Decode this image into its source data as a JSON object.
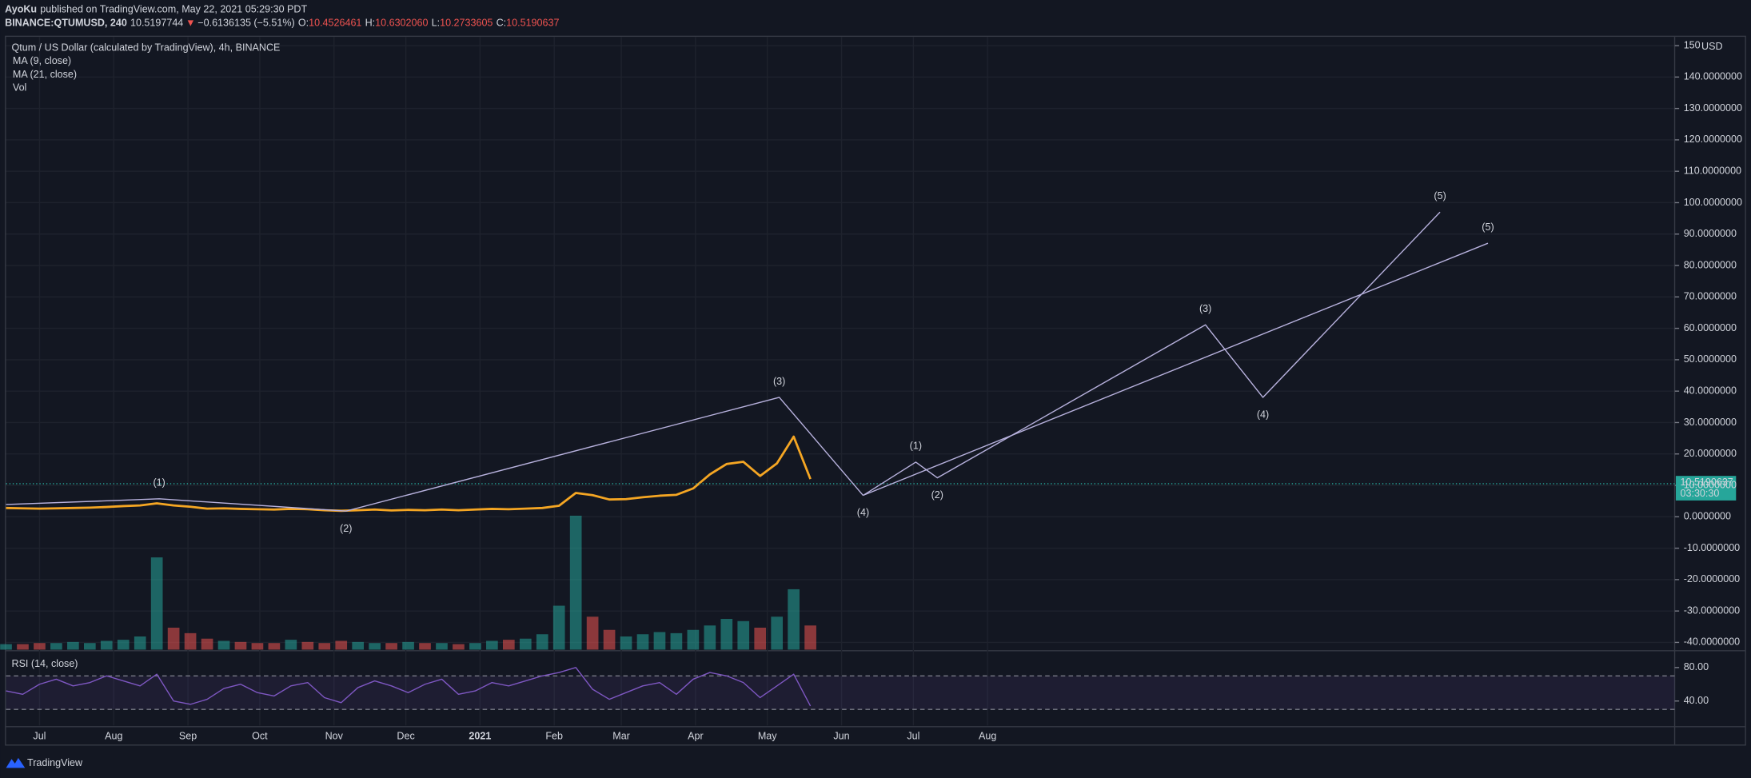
{
  "header": {
    "author": "AyoKu",
    "published": "published on TradingView.com, May 22, 2021 05:29:30 PDT",
    "symbol": "BINANCE:QTUMUSD, 240",
    "price": "10.5197744",
    "arrow": "▼",
    "change": "−0.6136135 (−5.51%)",
    "ohlc": [
      {
        "key": "O:",
        "value": "10.4526461"
      },
      {
        "key": "H:",
        "value": "10.6302060"
      },
      {
        "key": "L:",
        "value": "10.2733605"
      },
      {
        "key": "C:",
        "value": "10.5190637"
      }
    ]
  },
  "chart_data": {
    "type": "line",
    "title": "Qtum / US Dollar (calculated by TradingView), 4h, BINANCE",
    "indicators": [
      "MA (9, close)",
      "MA (21, close)",
      "Vol"
    ],
    "y_axis_label": "USD",
    "xlim": [
      "2020-06-17",
      "2022-05-15"
    ],
    "xticks": [
      {
        "value": "2020-07-01",
        "label": "Jul"
      },
      {
        "value": "2020-08-01",
        "label": "Aug"
      },
      {
        "value": "2020-09-01",
        "label": "Sep"
      },
      {
        "value": "2020-10-01",
        "label": "Oct"
      },
      {
        "value": "2020-11-01",
        "label": "Nov"
      },
      {
        "value": "2020-12-01",
        "label": "Dec"
      },
      {
        "value": "2021-01-01",
        "label": "2021"
      },
      {
        "value": "2021-02-01",
        "label": "Feb"
      },
      {
        "value": "2021-03-01",
        "label": "Mar"
      },
      {
        "value": "2021-04-01",
        "label": "Apr"
      },
      {
        "value": "2021-05-01",
        "label": "May"
      },
      {
        "value": "2021-06-01",
        "label": "Jun"
      },
      {
        "value": "2021-07-01",
        "label": "Jul"
      },
      {
        "value": "2021-08-01",
        "label": "Aug"
      }
    ],
    "ylim": [
      -42.3,
      152.8
    ],
    "yticks": [
      {
        "value": -40,
        "label": "-40.0000000"
      },
      {
        "value": -30,
        "label": "-30.0000000"
      },
      {
        "value": -20,
        "label": "-20.0000000"
      },
      {
        "value": -10,
        "label": "-10.0000000"
      },
      {
        "value": 0,
        "label": "0.0000000"
      },
      {
        "value": 10,
        "label": "10.0000000"
      },
      {
        "value": 20,
        "label": "20.0000000"
      },
      {
        "value": 30,
        "label": "30.0000000"
      },
      {
        "value": 40,
        "label": "40.0000000"
      },
      {
        "value": 50,
        "label": "50.0000000"
      },
      {
        "value": 60,
        "label": "60.0000000"
      },
      {
        "value": 70,
        "label": "70.0000000"
      },
      {
        "value": 80,
        "label": "80.0000000"
      },
      {
        "value": 90,
        "label": "90.0000000"
      },
      {
        "value": 100,
        "label": "100.0000000"
      },
      {
        "value": 110,
        "label": "110.0000000"
      },
      {
        "value": 120,
        "label": "120.0000000"
      },
      {
        "value": 130,
        "label": "130.0000000"
      },
      {
        "value": 140,
        "label": "140.0000000"
      },
      {
        "value": 150,
        "label": "150"
      }
    ],
    "grid": true,
    "x": [
      "2020-06-17",
      "2020-06-24",
      "2020-07-01",
      "2020-07-08",
      "2020-07-15",
      "2020-07-22",
      "2020-07-29",
      "2020-08-05",
      "2020-08-12",
      "2020-08-19",
      "2020-08-26",
      "2020-09-02",
      "2020-09-09",
      "2020-09-16",
      "2020-09-23",
      "2020-09-30",
      "2020-10-07",
      "2020-10-14",
      "2020-10-21",
      "2020-10-28",
      "2020-11-04",
      "2020-11-11",
      "2020-11-18",
      "2020-11-25",
      "2020-12-02",
      "2020-12-09",
      "2020-12-16",
      "2020-12-23",
      "2020-12-30",
      "2021-01-06",
      "2021-01-13",
      "2021-01-20",
      "2021-01-27",
      "2021-02-03",
      "2021-02-10",
      "2021-02-17",
      "2021-02-24",
      "2021-03-03",
      "2021-03-10",
      "2021-03-17",
      "2021-03-24",
      "2021-03-31",
      "2021-04-07",
      "2021-04-14",
      "2021-04-21",
      "2021-04-28",
      "2021-05-05",
      "2021-05-12",
      "2021-05-19"
    ],
    "series": [
      {
        "color": "#f5a623",
        "values": [
          2.8,
          2.7,
          2.6,
          2.7,
          2.8,
          2.9,
          3.1,
          3.4,
          3.6,
          4.3,
          3.6,
          3.2,
          2.6,
          2.7,
          2.5,
          2.4,
          2.3,
          2.5,
          2.4,
          2.1,
          1.9,
          2.1,
          2.3,
          2.0,
          2.2,
          2.1,
          2.3,
          2.1,
          2.3,
          2.5,
          2.4,
          2.6,
          2.8,
          3.5,
          7.6,
          6.9,
          5.5,
          5.6,
          6.2,
          6.7,
          7.0,
          9.0,
          13.5,
          16.8,
          17.5,
          13.0,
          17.0,
          25.5,
          12.0
        ]
      }
    ],
    "volume": {
      "up_color": "#26a69a",
      "down_color": "#ef5350",
      "values": [
        5,
        5,
        6,
        6,
        7,
        6,
        8,
        9,
        12,
        84,
        20,
        15,
        10,
        8,
        7,
        6,
        6,
        9,
        7,
        6,
        8,
        7,
        6,
        6,
        7,
        6,
        6,
        5,
        6,
        8,
        9,
        10,
        14,
        40,
        122,
        30,
        18,
        12,
        14,
        16,
        15,
        18,
        22,
        28,
        26,
        20,
        30,
        55,
        22
      ]
    },
    "last": {
      "value": 10.5190637,
      "label": "10.5190637",
      "countdown": "03:30:30",
      "color": "#26a69a"
    },
    "waves": [
      {
        "color": "#b8b2de",
        "points": [
          {
            "x": "2020-06-17",
            "y": 3.9
          },
          {
            "x": "2020-08-20",
            "y": 5.7,
            "label": "(1)"
          },
          {
            "x": "2020-11-06",
            "y": 1.8,
            "label": "(2)"
          },
          {
            "x": "2021-05-06",
            "y": 38,
            "label": "(3)"
          },
          {
            "x": "2021-06-10",
            "y": 6.8,
            "label": "(4)"
          }
        ]
      },
      {
        "color": "#b8b2de",
        "points": [
          {
            "x": "2021-06-10",
            "y": 6.8
          },
          {
            "x": "2021-07-02",
            "y": 17.4,
            "label": "(1)"
          },
          {
            "x": "2021-07-11",
            "y": 12.4,
            "label": "(2)"
          },
          {
            "x": "2021-10-31",
            "y": 61.1,
            "label": "(3)"
          },
          {
            "x": "2021-11-24",
            "y": 38,
            "label": "(4)"
          },
          {
            "x": "2022-02-06",
            "y": 97,
            "label": "(5)"
          }
        ]
      },
      {
        "color": "#b8b2de",
        "points": [
          {
            "x": "2021-06-10",
            "y": 6.8
          },
          {
            "x": "2022-02-26",
            "y": 87.1,
            "label": "(5)"
          }
        ]
      }
    ],
    "rsi": {
      "title": "RSI (14, close)",
      "color": "#7e57c2",
      "ylim": [
        10.7,
        98.7
      ],
      "yticks": [
        {
          "value": 80,
          "label": "80.00"
        },
        {
          "value": 40,
          "label": "40.00"
        }
      ],
      "bands": [
        30,
        70
      ],
      "values": [
        52,
        48,
        60,
        66,
        58,
        62,
        70,
        64,
        58,
        72,
        40,
        36,
        42,
        55,
        60,
        50,
        46,
        58,
        62,
        44,
        38,
        56,
        64,
        58,
        50,
        60,
        66,
        48,
        52,
        62,
        58,
        64,
        70,
        74,
        80,
        54,
        42,
        50,
        58,
        62,
        48,
        66,
        74,
        70,
        62,
        44,
        58,
        72,
        34
      ]
    }
  },
  "footer": {
    "brand": "TradingView"
  }
}
